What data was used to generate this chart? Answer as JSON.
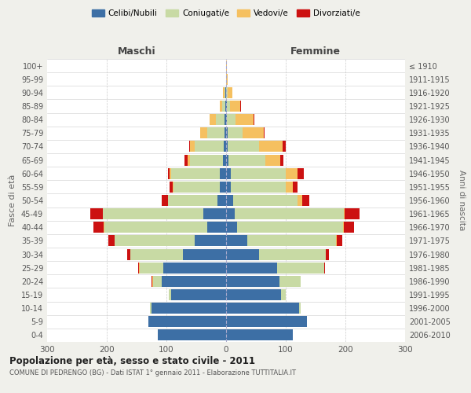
{
  "age_groups": [
    "0-4",
    "5-9",
    "10-14",
    "15-19",
    "20-24",
    "25-29",
    "30-34",
    "35-39",
    "40-44",
    "45-49",
    "50-54",
    "55-59",
    "60-64",
    "65-69",
    "70-74",
    "75-79",
    "80-84",
    "85-89",
    "90-94",
    "95-99",
    "100+"
  ],
  "birth_years": [
    "2006-2010",
    "2001-2005",
    "1996-2000",
    "1991-1995",
    "1986-1990",
    "1981-1985",
    "1976-1980",
    "1971-1975",
    "1966-1970",
    "1961-1965",
    "1956-1960",
    "1951-1955",
    "1946-1950",
    "1941-1945",
    "1936-1940",
    "1931-1935",
    "1926-1930",
    "1921-1925",
    "1916-1920",
    "1911-1915",
    "≤ 1910"
  ],
  "colors": {
    "celibi": "#3d6fa5",
    "coniugati": "#c8daa4",
    "vedovi": "#f5c060",
    "divorziati": "#cc1111"
  },
  "maschi": {
    "celibi": [
      115,
      130,
      125,
      92,
      108,
      105,
      72,
      52,
      32,
      38,
      15,
      10,
      10,
      5,
      4,
      3,
      2,
      1,
      1,
      0,
      0
    ],
    "coniugati": [
      0,
      0,
      2,
      4,
      15,
      40,
      88,
      135,
      172,
      168,
      82,
      78,
      82,
      55,
      48,
      28,
      15,
      5,
      2,
      0,
      0
    ],
    "vedovi": [
      0,
      0,
      0,
      0,
      1,
      1,
      1,
      0,
      1,
      1,
      1,
      2,
      3,
      5,
      8,
      12,
      10,
      5,
      2,
      0,
      0
    ],
    "divorziati": [
      0,
      0,
      0,
      0,
      1,
      2,
      5,
      10,
      18,
      20,
      10,
      5,
      3,
      5,
      2,
      0,
      0,
      0,
      0,
      0,
      0
    ]
  },
  "femmine": {
    "celibi": [
      112,
      135,
      122,
      92,
      90,
      85,
      55,
      36,
      18,
      15,
      12,
      8,
      8,
      4,
      3,
      2,
      1,
      1,
      0,
      0,
      0
    ],
    "coniugati": [
      0,
      0,
      3,
      8,
      35,
      80,
      112,
      148,
      178,
      182,
      108,
      92,
      92,
      62,
      52,
      26,
      15,
      5,
      3,
      0,
      0
    ],
    "vedovi": [
      0,
      0,
      0,
      0,
      0,
      0,
      0,
      1,
      1,
      2,
      8,
      12,
      20,
      25,
      40,
      35,
      30,
      18,
      8,
      2,
      1
    ],
    "divorziati": [
      0,
      0,
      0,
      0,
      0,
      1,
      5,
      10,
      18,
      25,
      12,
      8,
      10,
      5,
      5,
      2,
      2,
      1,
      0,
      0,
      0
    ]
  },
  "title": "Popolazione per età, sesso e stato civile - 2011",
  "subtitle": "COMUNE DI PEDRENGO (BG) - Dati ISTAT 1° gennaio 2011 - Elaborazione TUTTITALIA.IT",
  "xlabel_left": "Maschi",
  "xlabel_right": "Femmine",
  "ylabel_left": "Fasce di età",
  "ylabel_right": "Anni di nascita",
  "xlim": 300,
  "legend_labels": [
    "Celibi/Nubili",
    "Coniugati/e",
    "Vedovi/e",
    "Divorziati/e"
  ],
  "bg_color": "#f0f0eb",
  "plot_bg": "#ffffff",
  "grid_color": "#cccccc"
}
